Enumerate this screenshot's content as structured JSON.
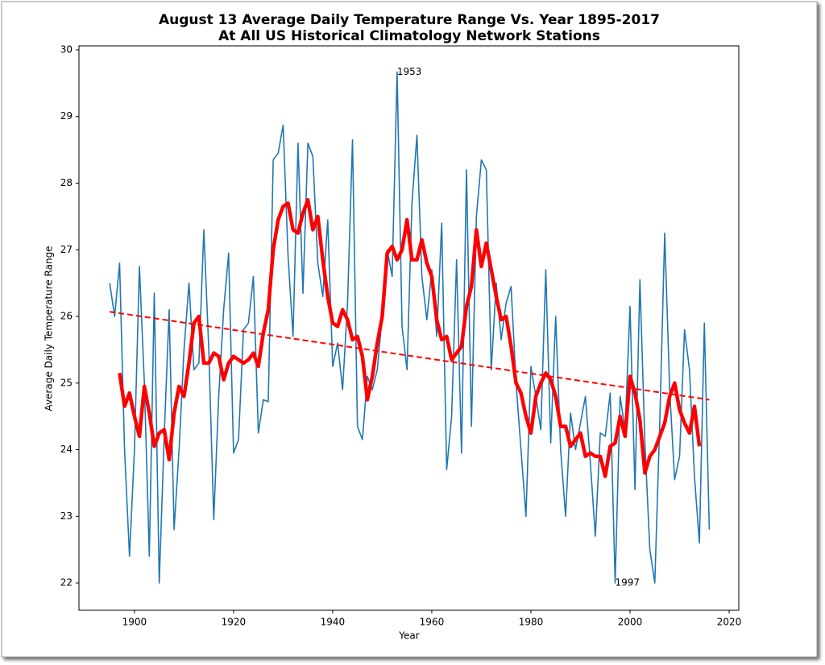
{
  "chart_data": {
    "type": "line",
    "title": "August 13 Average Daily Temperature Range Vs. Year 1895-2017",
    "subtitle": "At All US Historical Climatology Network Stations",
    "xlabel": "Year",
    "ylabel": "Average Daily Temperature Range",
    "xlim": [
      1888.8,
      2021.95
    ],
    "ylim": [
      21.59,
      30.06
    ],
    "xticks": [
      1900,
      1920,
      1940,
      1960,
      1980,
      2000,
      2020
    ],
    "yticks": [
      22,
      23,
      24,
      25,
      26,
      27,
      28,
      29,
      30
    ],
    "grid": false,
    "series": [
      {
        "color": "#1f77b4",
        "linestyle": "solid",
        "x": [
          1895,
          1896,
          1897,
          1898,
          1899,
          1900,
          1901,
          1902,
          1903,
          1904,
          1905,
          1906,
          1907,
          1908,
          1909,
          1910,
          1911,
          1912,
          1913,
          1914,
          1915,
          1916,
          1917,
          1918,
          1919,
          1920,
          1921,
          1922,
          1923,
          1924,
          1925,
          1926,
          1927,
          1928,
          1929,
          1930,
          1931,
          1932,
          1933,
          1934,
          1935,
          1936,
          1937,
          1938,
          1939,
          1940,
          1941,
          1942,
          1943,
          1944,
          1945,
          1946,
          1947,
          1948,
          1949,
          1950,
          1951,
          1952,
          1953,
          1954,
          1955,
          1956,
          1957,
          1958,
          1959,
          1960,
          1961,
          1962,
          1963,
          1964,
          1965,
          1966,
          1967,
          1968,
          1969,
          1970,
          1971,
          1972,
          1973,
          1974,
          1975,
          1976,
          1977,
          1978,
          1979,
          1980,
          1981,
          1982,
          1983,
          1984,
          1985,
          1986,
          1987,
          1988,
          1989,
          1990,
          1991,
          1992,
          1993,
          1994,
          1995,
          1996,
          1997,
          1998,
          1999,
          2000,
          2001,
          2002,
          2003,
          2004,
          2005,
          2006,
          2007,
          2008,
          2009,
          2010,
          2011,
          2012,
          2013,
          2014,
          2015,
          2016
        ],
        "values": [
          26.5,
          26.0,
          26.8,
          24.0,
          22.4,
          24.0,
          26.75,
          25.0,
          22.4,
          26.35,
          22.0,
          24.2,
          26.1,
          22.8,
          24.0,
          25.5,
          26.5,
          25.2,
          25.3,
          27.3,
          25.5,
          22.95,
          24.8,
          26.1,
          26.95,
          23.95,
          24.15,
          25.8,
          25.9,
          26.6,
          24.25,
          24.75,
          24.72,
          28.35,
          28.45,
          28.87,
          26.9,
          25.7,
          28.6,
          26.35,
          28.6,
          28.4,
          26.8,
          26.3,
          27.45,
          25.25,
          25.6,
          24.9,
          26.2,
          28.65,
          24.35,
          24.15,
          25.1,
          24.9,
          25.2,
          26.0,
          27.0,
          26.6,
          29.67,
          25.85,
          25.2,
          27.7,
          28.72,
          26.6,
          25.95,
          26.7,
          25.7,
          27.4,
          23.7,
          24.5,
          26.85,
          23.95,
          28.2,
          24.35,
          27.5,
          28.35,
          28.2,
          25.2,
          26.5,
          25.65,
          26.2,
          26.45,
          25.0,
          24.0,
          23.0,
          25.25,
          24.8,
          24.3,
          26.7,
          24.1,
          26.0,
          24.0,
          23.0,
          24.55,
          24.0,
          24.4,
          24.8,
          23.8,
          22.7,
          24.25,
          24.2,
          24.85,
          22.0,
          24.8,
          24.3,
          26.15,
          23.4,
          26.55,
          24.1,
          22.5,
          22.0,
          24.4,
          27.25,
          24.9,
          23.55,
          23.9,
          25.8,
          25.2,
          23.6,
          22.6,
          25.9,
          22.8
        ]
      },
      {
        "color": "#ff0000",
        "linestyle": "solid",
        "x": [
          1897,
          1898,
          1899,
          1900,
          1901,
          1902,
          1903,
          1904,
          1905,
          1906,
          1907,
          1908,
          1909,
          1910,
          1911,
          1912,
          1913,
          1914,
          1915,
          1916,
          1917,
          1918,
          1919,
          1920,
          1921,
          1922,
          1923,
          1924,
          1925,
          1926,
          1927,
          1928,
          1929,
          1930,
          1931,
          1932,
          1933,
          1934,
          1935,
          1936,
          1937,
          1938,
          1939,
          1940,
          1941,
          1942,
          1943,
          1944,
          1945,
          1946,
          1947,
          1948,
          1949,
          1950,
          1951,
          1952,
          1953,
          1954,
          1955,
          1956,
          1957,
          1958,
          1959,
          1960,
          1961,
          1962,
          1963,
          1964,
          1965,
          1966,
          1967,
          1968,
          1969,
          1970,
          1971,
          1972,
          1973,
          1974,
          1975,
          1976,
          1977,
          1978,
          1979,
          1980,
          1981,
          1982,
          1983,
          1984,
          1985,
          1986,
          1987,
          1988,
          1989,
          1990,
          1991,
          1992,
          1993,
          1994,
          1995,
          1996,
          1997,
          1998,
          1999,
          2000,
          2001,
          2002,
          2003,
          2004,
          2005,
          2006,
          2007,
          2008,
          2009,
          2010,
          2011,
          2012,
          2013,
          2014
        ],
        "values": [
          25.15,
          24.65,
          24.85,
          24.5,
          24.2,
          24.95,
          24.55,
          24.05,
          24.25,
          24.3,
          23.85,
          24.55,
          24.95,
          24.8,
          25.3,
          25.9,
          26.0,
          25.3,
          25.3,
          25.45,
          25.4,
          25.05,
          25.3,
          25.4,
          25.35,
          25.3,
          25.35,
          25.45,
          25.25,
          25.75,
          26.1,
          27.0,
          27.45,
          27.65,
          27.7,
          27.3,
          27.25,
          27.55,
          27.75,
          27.3,
          27.5,
          26.85,
          26.3,
          25.9,
          25.85,
          26.1,
          25.95,
          25.65,
          25.7,
          25.4,
          24.75,
          25.1,
          25.6,
          26.0,
          26.95,
          27.05,
          26.85,
          27.0,
          27.45,
          26.85,
          26.85,
          27.15,
          26.8,
          26.6,
          25.95,
          25.65,
          25.7,
          25.35,
          25.45,
          25.55,
          26.15,
          26.45,
          27.3,
          26.75,
          27.1,
          26.7,
          26.3,
          25.95,
          26.0,
          25.55,
          25.0,
          24.85,
          24.5,
          24.25,
          24.8,
          25.0,
          25.15,
          25.05,
          24.8,
          24.35,
          24.35,
          24.05,
          24.15,
          24.25,
          23.9,
          23.95,
          23.9,
          23.9,
          23.6,
          24.05,
          24.1,
          24.5,
          24.2,
          25.1,
          24.85,
          24.45,
          23.65,
          23.9,
          24.0,
          24.2,
          24.4,
          24.8,
          25.0,
          24.6,
          24.4,
          24.25,
          24.65,
          24.05
        ]
      },
      {
        "color": "#ff0000",
        "linestyle": "dashed",
        "x": [
          1895,
          2016
        ],
        "values": [
          26.07,
          24.75
        ]
      }
    ],
    "annotations": [
      {
        "text": "1953",
        "x": 1953,
        "y": 29.67
      },
      {
        "text": "1997",
        "x": 1997,
        "y": 22.0
      }
    ]
  }
}
